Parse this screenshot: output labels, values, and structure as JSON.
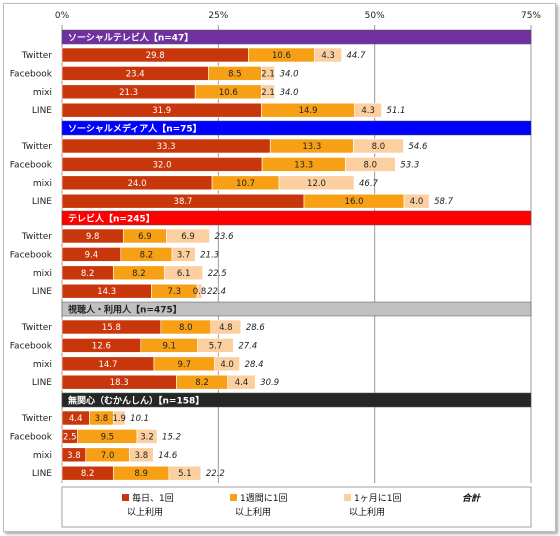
{
  "colors": {
    "series": [
      "#c8360c",
      "#f7a015",
      "#fbcfa0"
    ],
    "headers": [
      "#7030a0",
      "#0000ff",
      "#ff0000",
      "#c0c0c0",
      "#262626"
    ],
    "header_text": [
      "#ffffff",
      "#ffffff",
      "#ffffff",
      "#222222",
      "#ffffff"
    ]
  },
  "chart_data": {
    "type": "bar",
    "orientation": "horizontal",
    "stacked": true,
    "xlim": [
      0,
      75
    ],
    "xticks": [
      "0%",
      "25%",
      "50%",
      "75%"
    ],
    "xtick_values": [
      0,
      25,
      50,
      75
    ],
    "grid": true,
    "legend_position": "bottom",
    "series_names": [
      "毎日、1回\n以上利用",
      "1週間に1回\n以上利用",
      "1ヶ月に1回\n以上利用"
    ],
    "total_label": "合計",
    "groups": [
      {
        "title": "ソーシャルテレビ人【n=47】",
        "categories": [
          "Twitter",
          "Facebook",
          "mixi",
          "LINE"
        ],
        "values": [
          [
            29.8,
            10.6,
            4.3
          ],
          [
            23.4,
            8.5,
            2.1
          ],
          [
            21.3,
            10.6,
            2.1
          ],
          [
            31.9,
            14.9,
            4.3
          ]
        ],
        "totals": [
          "44.7",
          "34.0",
          "34.0",
          "51.1"
        ]
      },
      {
        "title": "ソーシャルメディア人【n=75】",
        "categories": [
          "Twitter",
          "Facebook",
          "mixi",
          "LINE"
        ],
        "values": [
          [
            33.3,
            13.3,
            8.0
          ],
          [
            32.0,
            13.3,
            8.0
          ],
          [
            24.0,
            10.7,
            12.0
          ],
          [
            38.7,
            16.0,
            4.0
          ]
        ],
        "totals": [
          "54.6",
          "53.3",
          "46.7",
          "58.7"
        ]
      },
      {
        "title": "テレビ人【n=245】",
        "categories": [
          "Twitter",
          "Facebook",
          "mixi",
          "LINE"
        ],
        "values": [
          [
            9.8,
            6.9,
            6.9
          ],
          [
            9.4,
            8.2,
            3.7
          ],
          [
            8.2,
            8.2,
            6.1
          ],
          [
            14.3,
            7.3,
            0.8
          ]
        ],
        "totals": [
          "23.6",
          "21.3",
          "22.5",
          "22.4"
        ]
      },
      {
        "title": "視聴人・利用人【n=475】",
        "categories": [
          "Twitter",
          "Facebook",
          "mixi",
          "LINE"
        ],
        "values": [
          [
            15.8,
            8.0,
            4.8
          ],
          [
            12.6,
            9.1,
            5.7
          ],
          [
            14.7,
            9.7,
            4.0
          ],
          [
            18.3,
            8.2,
            4.4
          ]
        ],
        "totals": [
          "28.6",
          "27.4",
          "28.4",
          "30.9"
        ]
      },
      {
        "title": "無関心（むかんしん）【n=158】",
        "categories": [
          "Twitter",
          "Facebook",
          "mixi",
          "LINE"
        ],
        "values": [
          [
            4.4,
            3.8,
            1.9
          ],
          [
            2.5,
            9.5,
            3.2
          ],
          [
            3.8,
            7.0,
            3.8
          ],
          [
            8.2,
            8.9,
            5.1
          ]
        ],
        "totals": [
          "10.1",
          "15.2",
          "14.6",
          "22.2"
        ]
      }
    ]
  }
}
